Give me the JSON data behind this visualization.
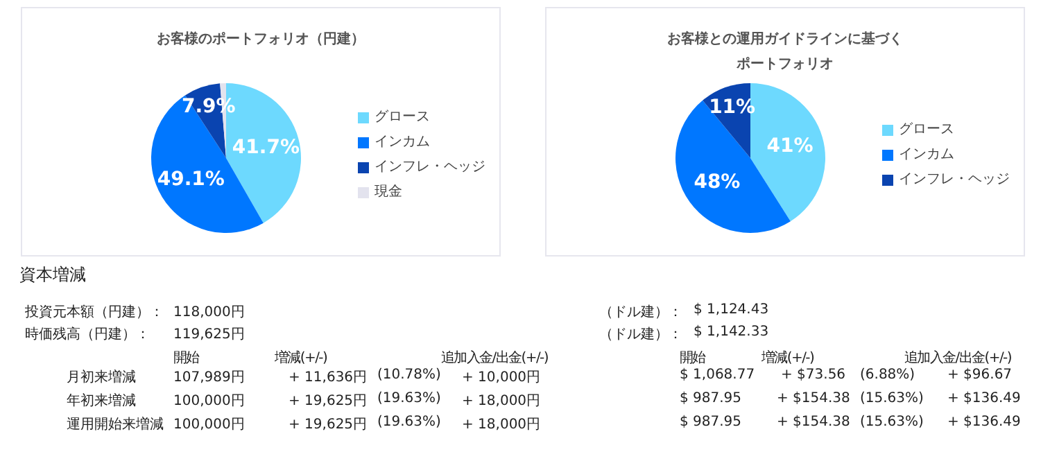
{
  "chart_data": [
    {
      "type": "pie",
      "title": "お客様のポートフォリオ（円建）",
      "categories": [
        "グロース",
        "インカム",
        "インフレ・ヘッジ",
        "現金"
      ],
      "values": [
        41.7,
        49.1,
        7.9,
        1.3
      ],
      "colors": [
        "#6dd9fe",
        "#0077ff",
        "#0a44b0",
        "#e3e3ee"
      ],
      "value_labels": [
        "41.7%",
        "49.1%",
        "7.9%",
        null
      ],
      "legend": "right"
    },
    {
      "type": "pie",
      "title": "お客様との運用ガイドラインに基づくポートフォリオ",
      "categories": [
        "グロース",
        "インカム",
        "インフレ・ヘッジ"
      ],
      "values": [
        41,
        48,
        11
      ],
      "colors": [
        "#6dd9fe",
        "#0077ff",
        "#0a44b0"
      ],
      "value_labels": [
        "41%",
        "48%",
        "11%"
      ],
      "legend": "right"
    },
    {
      "type": "other",
      "title": "資本増減",
      "annotations": [
        "投資元本額（円建）：",
        "118,000円",
        "（ドル建）：",
        "$ 1,124.43",
        "時価残高（円建）：",
        "119,625円",
        "（ドル建）：",
        "$ 1,142.33",
        "開始",
        "増減(+/-)",
        "追加入金/出金(+/-)",
        "開始",
        "増減(+/-)",
        "追加入金/出金(+/-)",
        "月初来増減",
        "107,989円",
        "+ 11,636円",
        "(10.78%)",
        "+ 10,000円",
        "$ 1,068.77",
        "+ $73.56",
        "(6.88%)",
        "+ $96.67",
        "年初来増減",
        "100,000円",
        "+ 19,625円",
        "(19.63%)",
        "+ 18,000円",
        "$ 987.95",
        "+ $154.38",
        "(15.63%)",
        "+ $136.49",
        "運用開始来増減",
        "100,000円",
        "+ 19,625円",
        "(19.63%)",
        "+ 18,000円",
        "$ 987.95",
        "+ $154.38",
        "(15.63%)",
        "+ $136.49"
      ]
    }
  ]
}
